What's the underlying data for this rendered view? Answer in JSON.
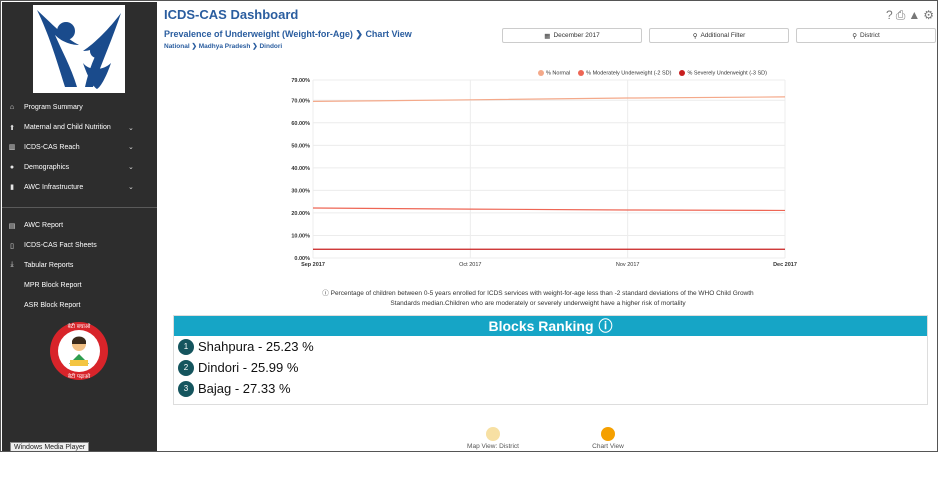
{
  "app": {
    "title": "ICDS-CAS Dashboard"
  },
  "header_icons": [
    "help-icon",
    "print-icon",
    "alert-icon",
    "settings-icon"
  ],
  "sidebar": {
    "items": [
      {
        "icon": "home-icon",
        "label": "Program Summary",
        "expandable": false
      },
      {
        "icon": "person-icon",
        "label": "Maternal and Child Nutrition",
        "expandable": true
      },
      {
        "icon": "bar-chart-icon",
        "label": "ICDS-CAS Reach",
        "expandable": true
      },
      {
        "icon": "users-icon",
        "label": "Demographics",
        "expandable": true
      },
      {
        "icon": "building-icon",
        "label": "AWC Infrastructure",
        "expandable": true
      }
    ],
    "items2": [
      {
        "icon": "report-icon",
        "label": "AWC Report"
      },
      {
        "icon": "document-icon",
        "label": "ICDS-CAS Fact Sheets"
      },
      {
        "icon": "download-icon",
        "label": "Tabular Reports"
      },
      {
        "icon": "blank-icon",
        "label": "MPR Block Report"
      },
      {
        "icon": "blank-icon",
        "label": "ASR Block Report"
      }
    ],
    "brand_text_top": "बेटी बचाओ",
    "brand_text_bottom": "बेटी पढ़ाओ"
  },
  "taskbar": {
    "label": "Windows Media Player"
  },
  "page": {
    "subtitle": "Prevalence of Underweight (Weight-for-Age)",
    "view": "Chart View",
    "breadcrumb": [
      "National",
      "Madhya Pradesh",
      "Dindori"
    ]
  },
  "filters": [
    {
      "icon": "calendar-icon",
      "label": "December 2017"
    },
    {
      "icon": "search-icon",
      "label": "Additional Filter"
    },
    {
      "icon": "map-pin-icon",
      "label": "District"
    }
  ],
  "chart_data": {
    "type": "line",
    "x": [
      "Sep 2017",
      "Oct 2017",
      "Nov 2017",
      "Dec 2017"
    ],
    "series": [
      {
        "name": "% Normal",
        "color": "#f4a98a",
        "values": [
          69.5,
          70.2,
          71.0,
          71.5
        ]
      },
      {
        "name": "% Moderately Underweight (-2 SD)",
        "color": "#ee6655",
        "values": [
          22.2,
          21.7,
          21.3,
          21.1
        ]
      },
      {
        "name": "% Severely Underweight (-3 SD)",
        "color": "#c81f1f",
        "values": [
          3.9,
          3.9,
          3.9,
          3.9
        ]
      }
    ],
    "yticks": [
      "0.00%",
      "10.00%",
      "20.00%",
      "30.00%",
      "40.00%",
      "50.00%",
      "60.00%",
      "70.00%",
      "79.00%"
    ],
    "ytick_values": [
      0,
      10,
      20,
      30,
      40,
      50,
      60,
      70,
      79
    ],
    "ylim": [
      0,
      79
    ],
    "grid": true,
    "legend": "top-right"
  },
  "note": "Percentage of children between 0-5 years enrolled for ICDS services with weight-for-age less than -2 standard deviations of the WHO Child Growth Standards median.Children who are moderately or severely underweight have a higher risk of mortality",
  "ranking": {
    "title": "Blocks Ranking",
    "rows": [
      {
        "rank": "1",
        "text": "Shahpura - 25.23 %"
      },
      {
        "rank": "2",
        "text": "Dindori - 25.99 %"
      },
      {
        "rank": "3",
        "text": "Bajag - 27.33 %"
      }
    ]
  },
  "view_toggle": {
    "map_label": "Map View: District",
    "chart_label": "Chart View",
    "map_color": "#f7e0a3",
    "chart_color": "#f5a000"
  }
}
